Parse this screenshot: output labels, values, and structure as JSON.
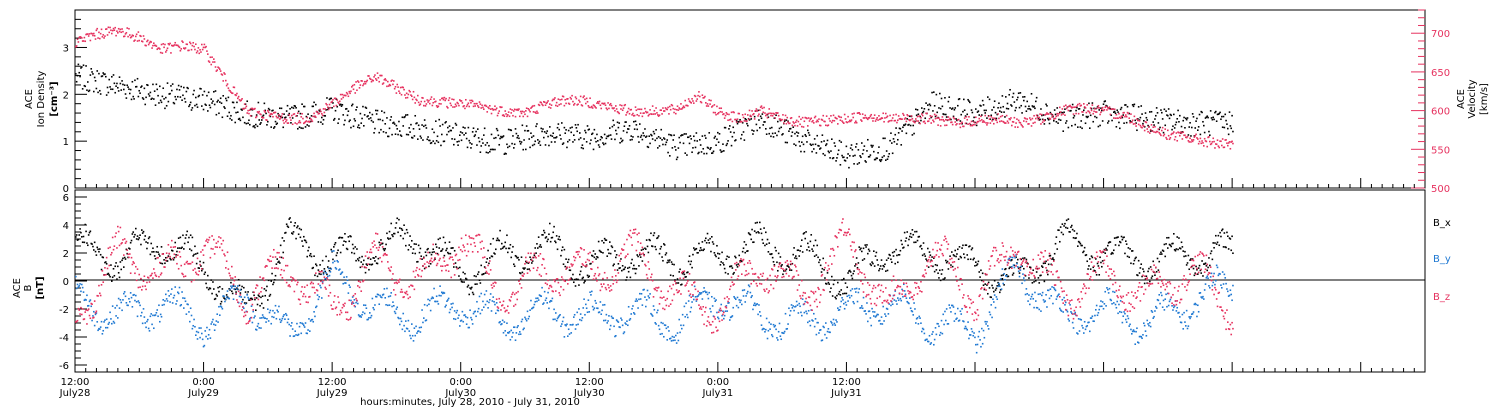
{
  "chart_data": [
    {
      "type": "scatter",
      "panel": "top",
      "ylabel_left": [
        "ACE",
        "Ion Density",
        "[cm⁻³]"
      ],
      "ylabel_right": [
        "ACE",
        "Velocity",
        "[km/s]"
      ],
      "ylim_left": [
        0,
        3.8
      ],
      "yticks_left": [
        "0",
        "1",
        "2",
        "3"
      ],
      "ylim_right": [
        500,
        730
      ],
      "yticks_right": [
        "500",
        "550",
        "600",
        "650",
        "700"
      ],
      "series": [
        {
          "color": "#000000",
          "axis": "left",
          "x": [
            0,
            4,
            8,
            12,
            16,
            20,
            24,
            28,
            32,
            36,
            40,
            44,
            48,
            52,
            56,
            60,
            64,
            68,
            72,
            76,
            80,
            84,
            88,
            92,
            96,
            100,
            104,
            108
          ],
          "y": [
            2.4,
            2.2,
            2.0,
            1.9,
            1.6,
            1.5,
            1.7,
            1.4,
            1.3,
            1.1,
            1.0,
            1.2,
            1.1,
            1.3,
            0.9,
            1.0,
            1.5,
            1.0,
            0.7,
            0.9,
            1.8,
            1.6,
            1.9,
            1.5,
            1.6,
            1.5,
            1.4,
            1.4
          ]
        },
        {
          "color": "#e6325f",
          "axis": "right",
          "x": [
            0,
            2,
            4,
            6,
            8,
            10,
            12,
            14,
            16,
            18,
            20,
            22,
            24,
            26,
            28,
            30,
            32,
            34,
            36,
            38,
            40,
            42,
            44,
            46,
            48,
            50,
            52,
            54,
            56,
            58,
            60,
            62,
            64,
            66,
            68,
            70,
            72,
            74,
            76,
            78,
            80,
            82,
            84,
            86,
            88,
            90,
            92,
            94,
            96,
            98,
            100,
            102,
            104,
            106,
            108
          ],
          "y": [
            690,
            700,
            705,
            695,
            680,
            685,
            680,
            640,
            600,
            595,
            590,
            592,
            610,
            630,
            645,
            630,
            615,
            612,
            610,
            605,
            600,
            598,
            610,
            615,
            612,
            605,
            600,
            600,
            602,
            620,
            600,
            590,
            600,
            590,
            585,
            588,
            590,
            595,
            590,
            592,
            590,
            585,
            588,
            590,
            585,
            590,
            600,
            605,
            600,
            595,
            580,
            570,
            565,
            560,
            555
          ]
        }
      ]
    },
    {
      "type": "scatter",
      "panel": "bottom",
      "ylabel_left": [
        "ACE",
        "B",
        "[nT]"
      ],
      "ylim": [
        -6.5,
        6.5
      ],
      "yticks": [
        "-6",
        "-4",
        "-2",
        "0",
        "2",
        "4",
        "6"
      ],
      "legend": [
        "B_x",
        "B_y",
        "B_z"
      ],
      "series": [
        {
          "name": "Bx",
          "color": "#000000",
          "x": [
            0,
            4,
            8,
            12,
            16,
            20,
            24,
            28,
            32,
            36,
            40,
            44,
            48,
            52,
            56,
            60,
            64,
            68,
            72,
            76,
            80,
            84,
            88,
            92,
            96,
            100,
            104,
            108
          ],
          "y": [
            2.5,
            1.5,
            3.0,
            1.0,
            -2.0,
            3.0,
            1.5,
            2.5,
            3.0,
            0.5,
            2.0,
            2.5,
            1.0,
            2.0,
            1.5,
            2.0,
            2.5,
            2.0,
            0.0,
            2.5,
            2.0,
            1.0,
            0.0,
            3.0,
            2.0,
            1.5,
            2.0,
            2.0
          ]
        },
        {
          "name": "By",
          "color": "#1e78d2",
          "x": [
            0,
            4,
            8,
            12,
            16,
            20,
            24,
            28,
            32,
            36,
            40,
            44,
            48,
            52,
            56,
            60,
            64,
            68,
            72,
            76,
            80,
            84,
            88,
            92,
            96,
            100,
            104,
            108
          ],
          "y": [
            -1.0,
            -2.5,
            -1.5,
            -3.0,
            -1.0,
            -4.0,
            0.5,
            -2.0,
            -2.5,
            -1.5,
            -3.0,
            -2.0,
            -2.5,
            -2.0,
            -3.0,
            -1.0,
            -2.5,
            -3.0,
            -2.0,
            -1.5,
            -3.0,
            -3.5,
            1.0,
            -2.5,
            -2.0,
            -3.0,
            -1.5,
            0.0
          ]
        },
        {
          "name": "Bz",
          "color": "#e6325f",
          "x": [
            0,
            4,
            8,
            12,
            16,
            20,
            24,
            28,
            32,
            36,
            40,
            44,
            48,
            52,
            56,
            60,
            64,
            68,
            72,
            76,
            80,
            84,
            88,
            92,
            96,
            100,
            104,
            108
          ],
          "y": [
            -2.5,
            2.0,
            0.5,
            2.5,
            -1.0,
            1.0,
            -2.0,
            1.5,
            0.0,
            3.0,
            -1.0,
            1.0,
            0.5,
            2.0,
            -1.0,
            -2.0,
            1.5,
            -1.0,
            3.0,
            -2.0,
            2.0,
            -1.0,
            2.5,
            -1.0,
            0.5,
            -1.0,
            1.0,
            -2.0
          ]
        }
      ]
    }
  ],
  "x_axis": {
    "range_hours": [
      0,
      126
    ],
    "ticks": [
      {
        "h": 0,
        "time": "12:00",
        "day": "July28"
      },
      {
        "h": 12,
        "time": "0:00",
        "day": "July29"
      },
      {
        "h": 24,
        "time": "12:00",
        "day": "July29"
      },
      {
        "h": 36,
        "time": "0:00",
        "day": "July30"
      },
      {
        "h": 48,
        "time": "12:00",
        "day": "July30"
      },
      {
        "h": 60,
        "time": "0:00",
        "day": "July31"
      },
      {
        "h": 72,
        "time": "12:00",
        "day": "July31"
      }
    ],
    "xlabel": "hours:minutes, July 28, 2010 - July 31, 2010"
  }
}
